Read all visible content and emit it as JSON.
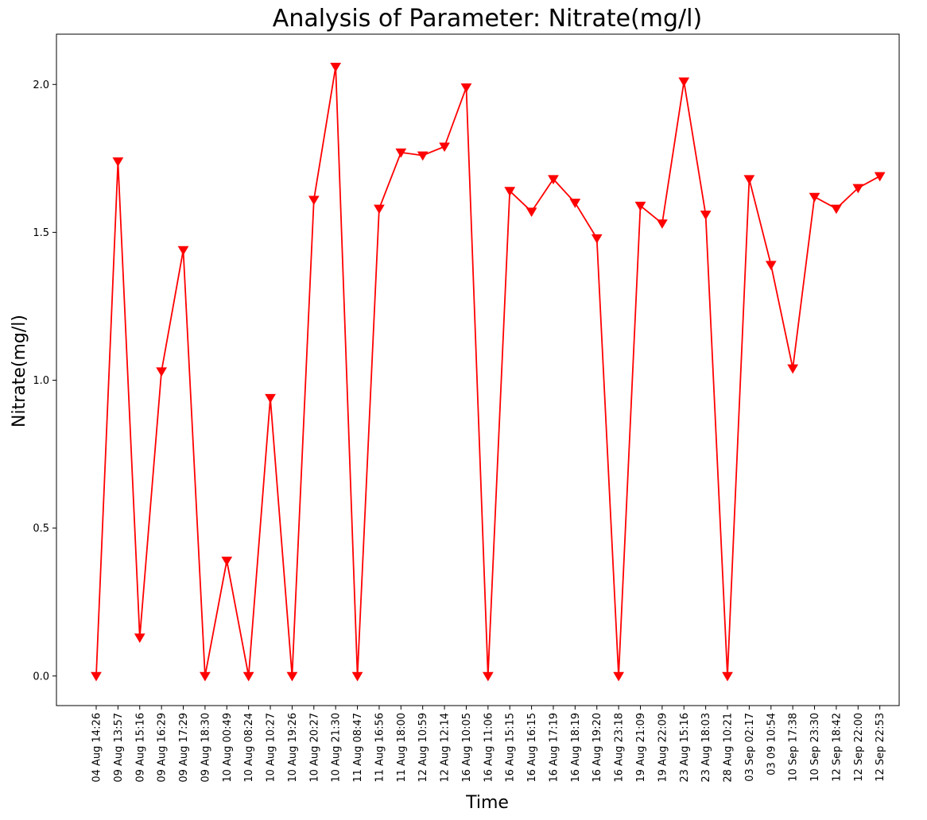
{
  "chart_data": {
    "type": "line",
    "title": "Analysis of Parameter: Nitrate(mg/l)",
    "xlabel": "Time",
    "ylabel": "Nitrate(mg/l)",
    "ylim": [
      -0.1,
      2.17
    ],
    "yticks": [
      0.0,
      0.5,
      1.0,
      1.5,
      2.0
    ],
    "ytick_labels": [
      "0.0",
      "0.5",
      "1.0",
      "1.5",
      "2.0"
    ],
    "grid": false,
    "marker": "triangle-down",
    "series": [
      {
        "color": "#ff0000",
        "x": [
          "04 Aug 14:26",
          "09 Aug 13:57",
          "09 Aug 15:16",
          "09 Aug 16:29",
          "09 Aug 17:29",
          "09 Aug 18:30",
          "10 Aug 00:49",
          "10 Aug 08:24",
          "10 Aug 10:27",
          "10 Aug 19:26",
          "10 Aug 20:27",
          "10 Aug 21:30",
          "11 Aug 08:47",
          "11 Aug 16:56",
          "11 Aug 18:00",
          "12 Aug 10:59",
          "12 Aug 12:14",
          "16 Aug 10:05",
          "16 Aug 11:06",
          "16 Aug 15:15",
          "16 Aug 16:15",
          "16 Aug 17:19",
          "16 Aug 18:19",
          "16 Aug 19:20",
          "16 Aug 23:18",
          "19 Aug 21:09",
          "19 Aug 22:09",
          "23 Aug 15:16",
          "23 Aug 18:03",
          "28 Aug 10:21",
          "03 Sep 02:17",
          "03 09 10:54",
          "10 Sep 17:38",
          "10 Sep 23:30",
          "12 Sep 18:42",
          "12 Sep 22:00",
          "12 Sep 22:53"
        ],
        "values": [
          0.0,
          1.74,
          0.13,
          1.03,
          1.44,
          0.0,
          0.39,
          0.0,
          0.94,
          0.0,
          1.61,
          2.06,
          0.0,
          1.58,
          1.77,
          1.76,
          1.79,
          1.99,
          0.0,
          1.64,
          1.57,
          1.68,
          1.6,
          1.48,
          0.0,
          1.59,
          1.53,
          2.01,
          1.56,
          0.0,
          1.68,
          1.39,
          1.04,
          1.62,
          1.58,
          1.65,
          1.69
        ]
      }
    ]
  }
}
